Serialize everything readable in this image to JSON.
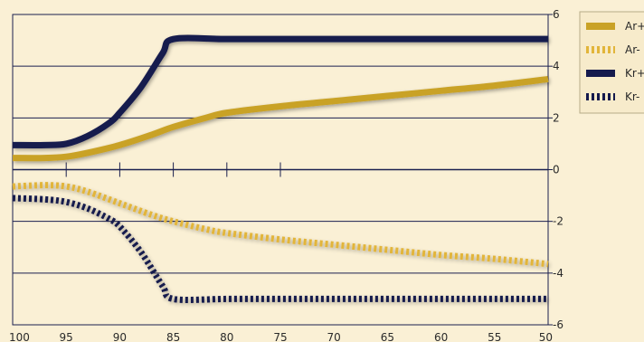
{
  "chart_data": {
    "type": "line",
    "x_reversed": true,
    "xlim": [
      100,
      50
    ],
    "ylim": [
      -6,
      6
    ],
    "x_ticks": [
      100,
      95,
      90,
      85,
      80,
      75,
      70,
      65,
      60,
      55,
      50
    ],
    "x_tick_labels": [
      "100",
      "95",
      "90",
      "85",
      "80",
      "75",
      "70",
      "65",
      "60",
      "55",
      "50"
    ],
    "y_ticks": [
      6,
      4,
      2,
      0,
      -2,
      -4,
      -6
    ],
    "y_tick_labels": [
      "6",
      "4",
      "2",
      "0",
      "-2",
      "-4",
      "-6"
    ],
    "zero_axis_ticks": [
      95,
      90,
      85,
      80,
      75
    ],
    "grid": true,
    "legend_position": "right",
    "series": [
      {
        "name": "Ar+",
        "color": "#c9a227",
        "style": "solid",
        "x": [
          100,
          97,
          95,
          93,
          90,
          87,
          85,
          82,
          80,
          75,
          70,
          65,
          60,
          55,
          50
        ],
        "y": [
          0.45,
          0.45,
          0.5,
          0.65,
          0.95,
          1.35,
          1.65,
          2.0,
          2.2,
          2.45,
          2.65,
          2.85,
          3.05,
          3.25,
          3.5
        ]
      },
      {
        "name": "Ar-",
        "color": "#e2b53a",
        "style": "dashed",
        "x": [
          100,
          97,
          95,
          93,
          90,
          87,
          85,
          82,
          80,
          75,
          70,
          65,
          60,
          55,
          50
        ],
        "y": [
          -0.65,
          -0.6,
          -0.65,
          -0.85,
          -1.3,
          -1.75,
          -2.0,
          -2.3,
          -2.45,
          -2.7,
          -2.9,
          -3.1,
          -3.3,
          -3.45,
          -3.65
        ]
      },
      {
        "name": "Kr+",
        "color": "#151a4d",
        "style": "solid",
        "x": [
          100,
          97,
          95,
          93,
          91,
          90,
          88,
          86,
          85,
          80,
          75,
          70,
          65,
          60,
          55,
          50
        ],
        "y": [
          0.95,
          0.95,
          1.0,
          1.3,
          1.8,
          2.2,
          3.2,
          4.5,
          5.05,
          5.05,
          5.05,
          5.05,
          5.05,
          5.05,
          5.05,
          5.05
        ]
      },
      {
        "name": "Kr-",
        "color": "#151a4d",
        "style": "dashed",
        "x": [
          100,
          97,
          95,
          93,
          91,
          90,
          88,
          86,
          85,
          80,
          75,
          70,
          65,
          60,
          55,
          50
        ],
        "y": [
          -1.1,
          -1.15,
          -1.25,
          -1.5,
          -1.9,
          -2.2,
          -3.2,
          -4.5,
          -5.0,
          -5.0,
          -5.0,
          -5.0,
          -5.0,
          -5.0,
          -5.0,
          -5.0
        ]
      }
    ],
    "legend": [
      "Ar+",
      "Ar-",
      "Kr+",
      "Kr-"
    ]
  }
}
